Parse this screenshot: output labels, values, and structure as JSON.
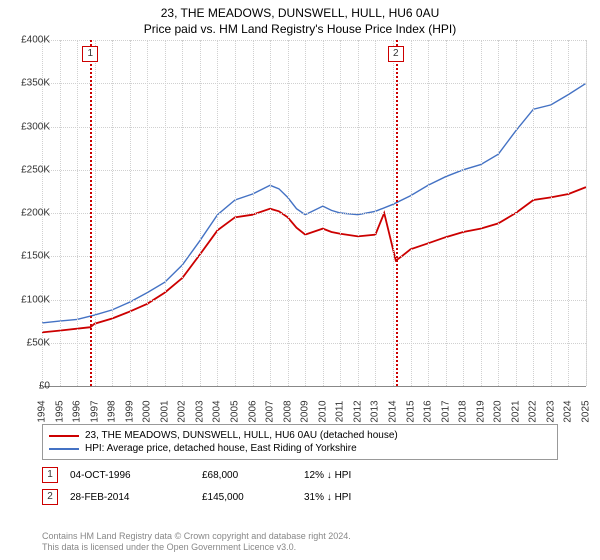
{
  "title": "23, THE MEADOWS, DUNSWELL, HULL, HU6 0AU",
  "subtitle": "Price paid vs. HM Land Registry's House Price Index (HPI)",
  "chart": {
    "type": "line",
    "background_color": "#ffffff",
    "grid_color": "#d0d0d0",
    "title_fontsize": 12,
    "label_fontsize": 10,
    "y_axis": {
      "min": 0,
      "max": 400000,
      "step": 50000,
      "ticks": [
        "£0",
        "£50K",
        "£100K",
        "£150K",
        "£200K",
        "£250K",
        "£300K",
        "£350K",
        "£400K"
      ]
    },
    "x_axis": {
      "min": 1994,
      "max": 2025,
      "step": 1,
      "ticks": [
        "1994",
        "1995",
        "1996",
        "1997",
        "1998",
        "1999",
        "2000",
        "2001",
        "2002",
        "2003",
        "2004",
        "2005",
        "2006",
        "2007",
        "2008",
        "2009",
        "2010",
        "2011",
        "2012",
        "2013",
        "2014",
        "2015",
        "2016",
        "2017",
        "2018",
        "2019",
        "2020",
        "2021",
        "2022",
        "2023",
        "2024",
        "2025"
      ]
    },
    "series": [
      {
        "name": "property",
        "label": "23, THE MEADOWS, DUNSWELL, HULL, HU6 0AU (detached house)",
        "color": "#cc0000",
        "line_width": 1.8,
        "data": [
          [
            1994,
            62000
          ],
          [
            1995,
            64000
          ],
          [
            1996.75,
            68000
          ],
          [
            1997,
            72000
          ],
          [
            1998,
            78000
          ],
          [
            1999,
            86000
          ],
          [
            2000,
            95000
          ],
          [
            2001,
            108000
          ],
          [
            2002,
            125000
          ],
          [
            2003,
            152000
          ],
          [
            2004,
            180000
          ],
          [
            2005,
            195000
          ],
          [
            2006,
            198000
          ],
          [
            2007,
            205000
          ],
          [
            2007.5,
            202000
          ],
          [
            2008,
            195000
          ],
          [
            2008.5,
            183000
          ],
          [
            2009,
            175000
          ],
          [
            2010,
            182000
          ],
          [
            2010.5,
            178000
          ],
          [
            2011,
            176000
          ],
          [
            2012,
            173000
          ],
          [
            2013,
            175000
          ],
          [
            2013.5,
            200000
          ],
          [
            2014.16,
            145000
          ],
          [
            2014.5,
            150000
          ],
          [
            2015,
            158000
          ],
          [
            2016,
            165000
          ],
          [
            2017,
            172000
          ],
          [
            2018,
            178000
          ],
          [
            2019,
            182000
          ],
          [
            2020,
            188000
          ],
          [
            2021,
            200000
          ],
          [
            2022,
            215000
          ],
          [
            2023,
            218000
          ],
          [
            2024,
            222000
          ],
          [
            2025,
            230000
          ]
        ]
      },
      {
        "name": "hpi",
        "label": "HPI: Average price, detached house, East Riding of Yorkshire",
        "color": "#4472c4",
        "line_width": 1.4,
        "data": [
          [
            1994,
            73000
          ],
          [
            1995,
            75000
          ],
          [
            1996,
            77000
          ],
          [
            1997,
            82000
          ],
          [
            1998,
            88000
          ],
          [
            1999,
            97000
          ],
          [
            2000,
            108000
          ],
          [
            2001,
            120000
          ],
          [
            2002,
            140000
          ],
          [
            2003,
            168000
          ],
          [
            2004,
            198000
          ],
          [
            2005,
            215000
          ],
          [
            2006,
            222000
          ],
          [
            2007,
            232000
          ],
          [
            2007.5,
            228000
          ],
          [
            2008,
            218000
          ],
          [
            2008.5,
            205000
          ],
          [
            2009,
            198000
          ],
          [
            2010,
            208000
          ],
          [
            2010.5,
            203000
          ],
          [
            2011,
            200000
          ],
          [
            2012,
            198000
          ],
          [
            2013,
            202000
          ],
          [
            2014,
            210000
          ],
          [
            2015,
            220000
          ],
          [
            2016,
            232000
          ],
          [
            2017,
            242000
          ],
          [
            2018,
            250000
          ],
          [
            2019,
            256000
          ],
          [
            2020,
            268000
          ],
          [
            2021,
            295000
          ],
          [
            2022,
            320000
          ],
          [
            2023,
            325000
          ],
          [
            2024,
            337000
          ],
          [
            2025,
            350000
          ]
        ]
      }
    ],
    "markers": [
      {
        "id": "1",
        "year": 1996.75
      },
      {
        "id": "2",
        "year": 2014.16
      }
    ]
  },
  "transactions": [
    {
      "id": "1",
      "date": "04-OCT-1996",
      "price": "£68,000",
      "pct": "12% ↓ HPI"
    },
    {
      "id": "2",
      "date": "28-FEB-2014",
      "price": "£145,000",
      "pct": "31% ↓ HPI"
    }
  ],
  "footnote_l1": "Contains HM Land Registry data © Crown copyright and database right 2024.",
  "footnote_l2": "This data is licensed under the Open Government Licence v3.0."
}
